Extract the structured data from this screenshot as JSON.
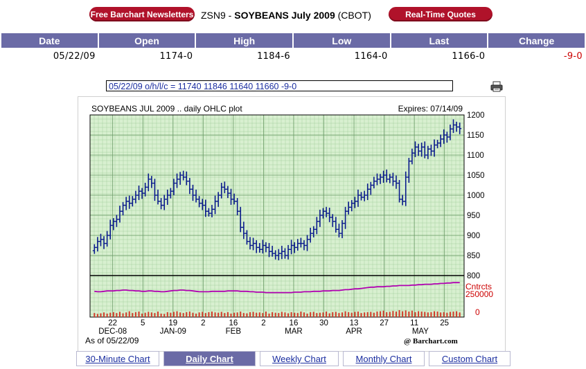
{
  "header": {
    "newsletter_button": "Free Barchart Newsletters",
    "symbol": "ZSN9 - ",
    "contract": "SOYBEANS July 2009",
    "exchange": " (CBOT)",
    "quotes_button": "Real-Time Quotes"
  },
  "quote_table": {
    "columns": [
      "Date",
      "Open",
      "High",
      "Low",
      "Last",
      "Change"
    ],
    "row": [
      "05/22/09",
      "1174-0",
      "1184-6",
      "1164-0",
      "1166-0",
      "-9-0"
    ]
  },
  "ohlc_line": "05/22/09 o/h/l/c = 11740 11846 11640 11660 -9-0",
  "chart_data": {
    "type": "ohlc",
    "title": "SOYBEANS JUL 2009 .. daily OHLC plot",
    "expires": "Expires: 07/14/09",
    "ylim": [
      800,
      1200
    ],
    "y_ticks": [
      "1200",
      "1150",
      "1100",
      "1050",
      "1000",
      "950",
      "900",
      "850",
      "800"
    ],
    "x_tick_days": [
      "22",
      "5",
      "19",
      "2",
      "16",
      "2",
      "16",
      "30",
      "13",
      "27",
      "11",
      "25"
    ],
    "x_month_labels": [
      "DEC-08",
      "JAN-09",
      "FEB",
      "MAR",
      "APR",
      "MAY"
    ],
    "volume_axis_labels": [
      "Cntrcts",
      "250000",
      "0"
    ],
    "as_of": "As of 05/22/09",
    "credit": "@ Barchart.com",
    "close_series": [
      870,
      885,
      890,
      880,
      900,
      925,
      935,
      940,
      960,
      975,
      985,
      980,
      990,
      1000,
      1010,
      1005,
      1020,
      1040,
      1030,
      1000,
      985,
      975,
      990,
      1000,
      1010,
      1030,
      1040,
      1050,
      1045,
      1035,
      1015,
      1000,
      990,
      980,
      975,
      960,
      955,
      965,
      985,
      1000,
      1020,
      1015,
      1005,
      990,
      985,
      960,
      920,
      905,
      885,
      875,
      880,
      870,
      865,
      875,
      870,
      860,
      855,
      850,
      855,
      860,
      850,
      865,
      875,
      870,
      880,
      880,
      875,
      890,
      905,
      915,
      935,
      950,
      960,
      955,
      945,
      935,
      915,
      905,
      930,
      960,
      970,
      980,
      985,
      1000,
      995,
      1000,
      1015,
      1025,
      1035,
      1040,
      1045,
      1050,
      1040,
      1045,
      1035,
      1030,
      990,
      985,
      1045,
      1085,
      1105,
      1120,
      1110,
      1120,
      1100,
      1115,
      1110,
      1125,
      1130,
      1140,
      1150,
      1145,
      1165,
      1175,
      1170,
      1166
    ],
    "volume_series": [
      70,
      55,
      65,
      80,
      60,
      75,
      85,
      70,
      90,
      65,
      80,
      100,
      70,
      85,
      95,
      60,
      75,
      90,
      80,
      70,
      95,
      60,
      55,
      85,
      75,
      90,
      100,
      80,
      70,
      85,
      95,
      75,
      60,
      80,
      90,
      70,
      85,
      95,
      80,
      75,
      90,
      70,
      85,
      60,
      75,
      80,
      95,
      70,
      65,
      85,
      90,
      75,
      80,
      70,
      95,
      60,
      85,
      75,
      70,
      90,
      80,
      65,
      85,
      75,
      70,
      95,
      80,
      60,
      85,
      90,
      70,
      75,
      80,
      95,
      65,
      85,
      90,
      70,
      80,
      100,
      85,
      75,
      90,
      95,
      70,
      80,
      85,
      90,
      75,
      95,
      100,
      110,
      85,
      90,
      105,
      95,
      120,
      100,
      115,
      95,
      110,
      85,
      100,
      95,
      90,
      80,
      85,
      100,
      95,
      80,
      85,
      75,
      90,
      95,
      100,
      80
    ],
    "oi_series": [
      0.42,
      0.41,
      0.41,
      0.42,
      0.43,
      0.43,
      0.43,
      0.44,
      0.44,
      0.45,
      0.45,
      0.44,
      0.44,
      0.43,
      0.43,
      0.42,
      0.42,
      0.43,
      0.43,
      0.42,
      0.42,
      0.41,
      0.41,
      0.42,
      0.43,
      0.44,
      0.44,
      0.45,
      0.45,
      0.44,
      0.44,
      0.43,
      0.42,
      0.41,
      0.41,
      0.41,
      0.41,
      0.42,
      0.42,
      0.42,
      0.42,
      0.42,
      0.43,
      0.43,
      0.43,
      0.43,
      0.42,
      0.42,
      0.42,
      0.41,
      0.41,
      0.4,
      0.4,
      0.4,
      0.39,
      0.39,
      0.39,
      0.39,
      0.39,
      0.39,
      0.39,
      0.39,
      0.39,
      0.4,
      0.4,
      0.4,
      0.41,
      0.41,
      0.41,
      0.42,
      0.42,
      0.42,
      0.43,
      0.43,
      0.43,
      0.44,
      0.44,
      0.44,
      0.45,
      0.46,
      0.46,
      0.47,
      0.48,
      0.48,
      0.49,
      0.5,
      0.51,
      0.52,
      0.52,
      0.53,
      0.53,
      0.53,
      0.54,
      0.54,
      0.55,
      0.55,
      0.56,
      0.56,
      0.56,
      0.56,
      0.57,
      0.57,
      0.58,
      0.58,
      0.59,
      0.59,
      0.59,
      0.6,
      0.6,
      0.61,
      0.61,
      0.62,
      0.62,
      0.63,
      0.63,
      0.63
    ],
    "colors": {
      "price_bars": "#0a1a8c",
      "volume_bars": "#d23a2a",
      "open_interest_line": "#b000b0",
      "chart_bg": "#d8f0d0",
      "grid": "#a6cfa0",
      "header_bar": "#6b6ba6",
      "button_red": "#b0122a"
    }
  },
  "bottom_tabs": [
    {
      "label": "30-Minute Chart",
      "active": false
    },
    {
      "label": "Daily Chart",
      "active": true
    },
    {
      "label": "Weekly Chart",
      "active": false
    },
    {
      "label": "Monthly Chart",
      "active": false
    },
    {
      "label": "Custom Chart",
      "active": false
    }
  ]
}
